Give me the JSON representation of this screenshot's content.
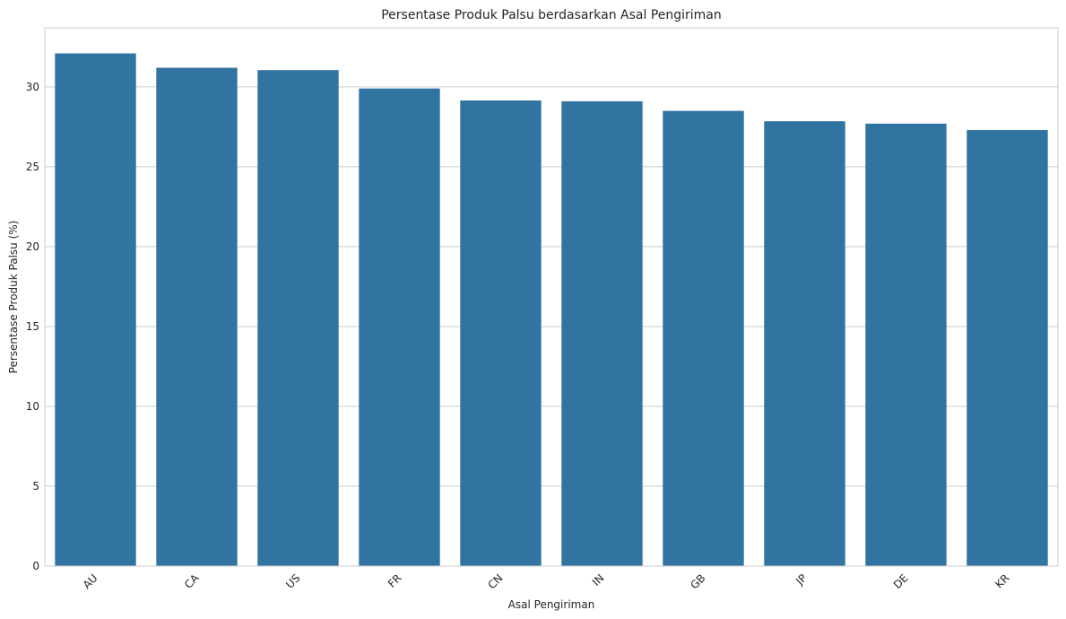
{
  "chart_data": {
    "type": "bar",
    "title": "Persentase Produk Palsu berdasarkan Asal Pengiriman",
    "xlabel": "Asal Pengiriman",
    "ylabel": "Persentase Produk Palsu (%)",
    "categories": [
      "AU",
      "CA",
      "US",
      "FR",
      "CN",
      "IN",
      "GB",
      "JP",
      "DE",
      "KR"
    ],
    "values": [
      32.1,
      31.2,
      31.05,
      29.9,
      29.15,
      29.1,
      28.5,
      27.85,
      27.7,
      27.3
    ],
    "ylim": [
      0,
      33.7
    ],
    "yticks": [
      0,
      5,
      10,
      15,
      20,
      25,
      30
    ],
    "bar_color": "#3274a1",
    "grid_color": "#cccccc",
    "grid": true,
    "legend": "none"
  }
}
